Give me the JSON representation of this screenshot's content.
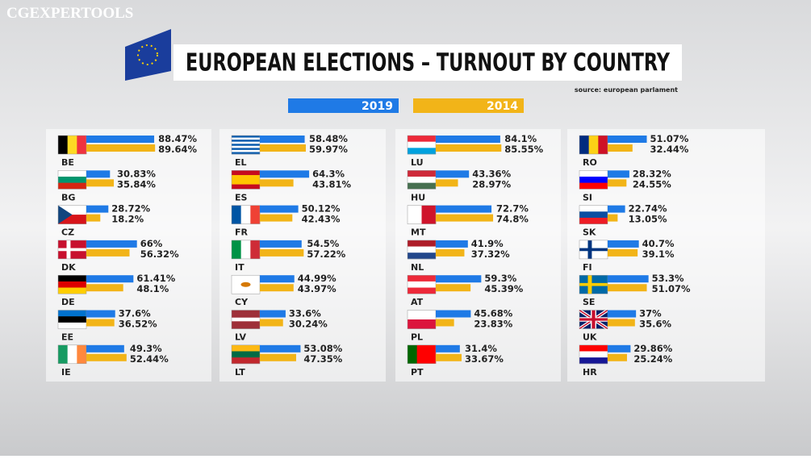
{
  "watermark": "CGEXPERTOOLS",
  "chart_data": {
    "type": "grouped-hbar-panels",
    "title": "EUROPEAN ELECTIONS – TURNOUT BY COUNTRY",
    "source": "source: european parlament",
    "categories": [
      "BE",
      "BG",
      "CZ",
      "DK",
      "DE",
      "EE",
      "IE",
      "EL",
      "ES",
      "FR",
      "IT",
      "CY",
      "LV",
      "LT",
      "LU",
      "HU",
      "MT",
      "NL",
      "AT",
      "PL",
      "PT",
      "RO",
      "SI",
      "SK",
      "FI",
      "SE",
      "UK",
      "HR"
    ],
    "series": [
      {
        "name": "2019",
        "color": "#1f7ae6",
        "values": [
          88.47,
          30.83,
          28.72,
          66,
          61.41,
          37.6,
          49.3,
          58.48,
          64.3,
          50.12,
          54.5,
          44.99,
          33.6,
          53.08,
          84.1,
          43.36,
          72.7,
          41.9,
          59.3,
          45.68,
          31.4,
          51.07,
          28.32,
          22.74,
          40.7,
          53.3,
          37,
          29.86
        ],
        "value_labels": [
          "88.47%",
          "30.83%",
          "28.72%",
          "66%",
          "61.41%",
          "37.6%",
          "49.3%",
          "58.48%",
          "64.3%",
          "50.12%",
          "54.5%",
          "44.99%",
          "33.6%",
          "53.08%",
          "84.1%",
          "43.36%",
          "72.7%",
          "41.9%",
          "59.3%",
          "45.68%",
          "31.4%",
          "51.07%",
          "28.32%",
          "22.74%",
          "40.7%",
          "53.3%",
          "37%",
          "29.86%"
        ]
      },
      {
        "name": "2014",
        "color": "#f2b418",
        "values": [
          89.64,
          35.84,
          18.2,
          56.32,
          48.1,
          36.52,
          52.44,
          59.97,
          43.81,
          42.43,
          57.22,
          43.97,
          30.24,
          47.35,
          85.55,
          28.97,
          74.8,
          37.32,
          45.39,
          23.83,
          33.67,
          32.44,
          24.55,
          13.05,
          39.1,
          51.07,
          35.6,
          25.24
        ],
        "value_labels": [
          "89.64%",
          "35.84%",
          "18.2%",
          "56.32%",
          "48.1%",
          "36.52%",
          "52.44%",
          "59.97%",
          "43.81%",
          "42.43%",
          "57.22%",
          "43.97%",
          "30.24%",
          "47.35%",
          "85.55%",
          "28.97%",
          "74.8%",
          "37.32%",
          "45.39%",
          "23.83%",
          "33.67%",
          "32.44%",
          "24.55%",
          "13.05%",
          "39.1%",
          "51.07%",
          "35.6%",
          "25.24%"
        ]
      }
    ]
  }
}
